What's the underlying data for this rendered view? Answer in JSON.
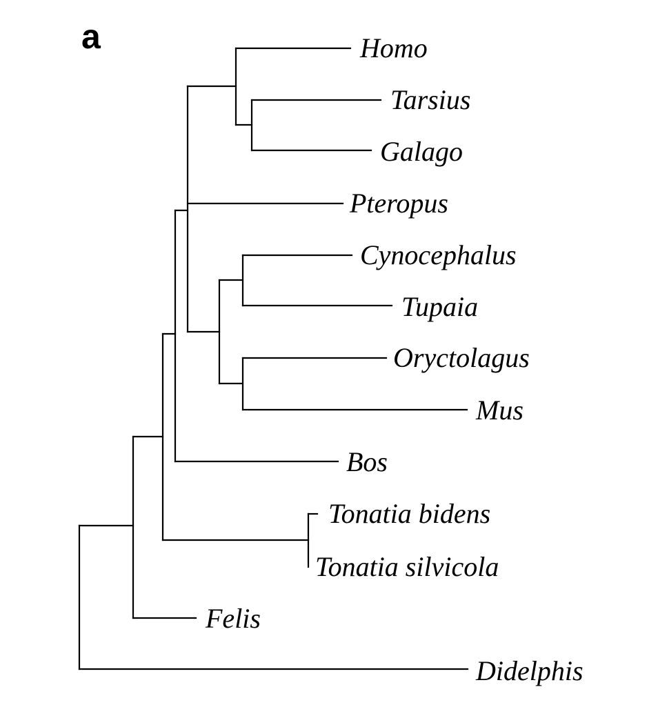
{
  "figure": {
    "panel_label": "a"
  },
  "tree": {
    "taxa": [
      "Homo",
      "Tarsius",
      "Galago",
      "Pteropus",
      "Cynocephalus",
      "Tupaia",
      "Oryctolagus",
      "Mus",
      "Bos",
      "Tonatia bidens",
      "Tonatia silvicola",
      "Felis",
      "Didelphis"
    ]
  }
}
